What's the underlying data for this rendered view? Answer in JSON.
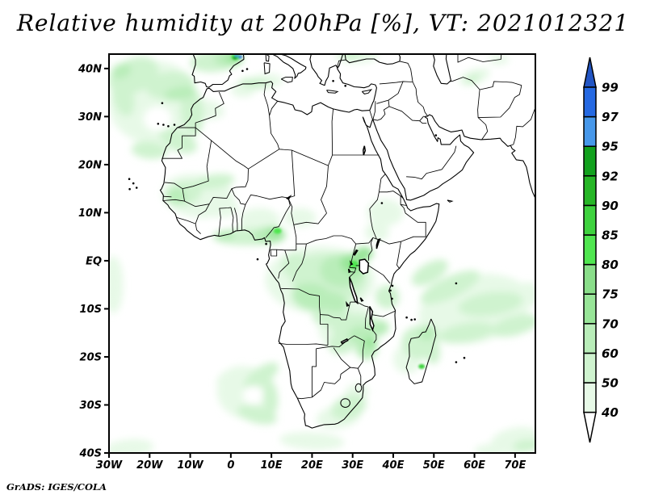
{
  "title": "Relative humidity at 200hPa [%], VT: 2021012321",
  "credit": "GrADS: IGES/COLA",
  "chart_data": {
    "type": "heatmap",
    "projection": "lat-lon map, Africa / Atlantic / Indian Ocean sector",
    "title": "Relative humidity at 200hPa [%], VT: 2021012321",
    "variable": "Relative humidity",
    "pressure_level": "200hPa",
    "units": "%",
    "valid_time": "2021012321",
    "lon_range": [
      -30,
      75
    ],
    "lat_range": [
      -40,
      43
    ],
    "grid": false,
    "legend_position": "right colorbar",
    "x_ticks": [
      {
        "lon": -30,
        "label": "30W"
      },
      {
        "lon": -20,
        "label": "20W"
      },
      {
        "lon": -10,
        "label": "10W"
      },
      {
        "lon": 0,
        "label": "0"
      },
      {
        "lon": 10,
        "label": "10E"
      },
      {
        "lon": 20,
        "label": "20E"
      },
      {
        "lon": 30,
        "label": "30E"
      },
      {
        "lon": 40,
        "label": "40E"
      },
      {
        "lon": 50,
        "label": "50E"
      },
      {
        "lon": 60,
        "label": "60E"
      },
      {
        "lon": 70,
        "label": "70E"
      }
    ],
    "y_ticks": [
      {
        "lat": 40,
        "label": "40N"
      },
      {
        "lat": 30,
        "label": "30N"
      },
      {
        "lat": 20,
        "label": "20N"
      },
      {
        "lat": 10,
        "label": "10N"
      },
      {
        "lat": 0,
        "label": "EQ"
      },
      {
        "lat": -10,
        "label": "10S"
      },
      {
        "lat": -20,
        "label": "20S"
      },
      {
        "lat": -30,
        "label": "30S"
      },
      {
        "lat": -40,
        "label": "40S"
      }
    ],
    "colorbar": {
      "levels": [
        40,
        50,
        60,
        70,
        75,
        80,
        85,
        90,
        92,
        95,
        97,
        99
      ],
      "segment_colors": [
        "#e7f9e7",
        "#cff3cf",
        "#b9edb9",
        "#98e598",
        "#8ade8a",
        "#50e650",
        "#3ed23e",
        "#26b626",
        "#12a11d",
        "#4798ea",
        "#2569e2"
      ],
      "under_color": "#ffffff",
      "over_color": "#2255c4"
    },
    "palette": {
      "40": "#e7f9e7",
      "50": "#cff3cf",
      "60": "#b9edb9",
      "70": "#98e598",
      "75": "#8ade8a",
      "80": "#50e650",
      "85": "#3ed23e",
      "90": "#26b626",
      "92": "#12a11d",
      "95": "#4798ea",
      "97": "#2569e2",
      "99": "#2255c4",
      "W": "#ffffff"
    },
    "shading": [
      [
        -19,
        33,
        11,
        8.5,
        -15,
        "40"
      ],
      [
        -26.5,
        34,
        2.5,
        4,
        -15,
        "50"
      ],
      [
        -24,
        38.5,
        6.5,
        3.5,
        -25,
        "50"
      ],
      [
        -15,
        36.5,
        6,
        2.8,
        -8,
        "50"
      ],
      [
        -9.5,
        31,
        2.8,
        5,
        -5,
        "50"
      ],
      [
        -13,
        25,
        5,
        2.2,
        25,
        "50"
      ],
      [
        -20,
        23,
        4.5,
        1.8,
        5,
        "50"
      ],
      [
        -18,
        29.5,
        3.5,
        2.6,
        0,
        "W"
      ],
      [
        -12.5,
        34.8,
        4,
        1.4,
        -10,
        "60"
      ],
      [
        -27,
        39.5,
        2.5,
        1.5,
        -20,
        "60"
      ],
      [
        -4,
        41.5,
        6,
        2.2,
        -5,
        "50"
      ],
      [
        -0.5,
        42,
        3.5,
        1.6,
        0,
        "60"
      ],
      [
        0.8,
        42.2,
        2,
        1.1,
        0,
        "70"
      ],
      [
        1.2,
        42.4,
        1.1,
        0.6,
        0,
        "80"
      ],
      [
        1,
        42.2,
        0.6,
        0.35,
        0,
        "92"
      ],
      [
        2.3,
        42.4,
        0.5,
        0.3,
        -20,
        "97"
      ],
      [
        1.4,
        42.7,
        0.45,
        0.25,
        -20,
        "95"
      ],
      [
        6,
        36.9,
        4,
        1.1,
        5,
        "50"
      ],
      [
        9,
        37.5,
        4,
        1.4,
        0,
        "40"
      ],
      [
        -6,
        31.5,
        4.5,
        2,
        10,
        "40"
      ],
      [
        3,
        35.5,
        3,
        1.5,
        0,
        "40"
      ],
      [
        31,
        42.7,
        5.5,
        1.6,
        0,
        "40"
      ],
      [
        29.5,
        42.9,
        2.5,
        1,
        0,
        "50"
      ],
      [
        60,
        38.3,
        4,
        1.5,
        -20,
        "40"
      ],
      [
        59.5,
        37.8,
        2,
        0.8,
        -25,
        "50"
      ],
      [
        66,
        41.8,
        2.5,
        1,
        0,
        "40"
      ],
      [
        -8,
        13.5,
        9,
        4.5,
        8,
        "40"
      ],
      [
        -11.5,
        14,
        4.5,
        2.5,
        -15,
        "50"
      ],
      [
        -13.5,
        13.5,
        2.5,
        1.6,
        0,
        "60"
      ],
      [
        -4,
        16.5,
        5,
        1.5,
        -8,
        "50"
      ],
      [
        -2,
        11,
        4,
        2,
        0,
        "40"
      ],
      [
        4,
        5,
        8.5,
        1.8,
        0,
        "50"
      ],
      [
        9.5,
        5.3,
        4,
        1.8,
        0,
        "60"
      ],
      [
        11,
        5.8,
        2.2,
        1.2,
        10,
        "70"
      ],
      [
        11.5,
        6.2,
        1,
        0.6,
        0,
        "80"
      ],
      [
        -1.5,
        5.2,
        2.5,
        1,
        0,
        "60"
      ],
      [
        7,
        8.5,
        5,
        2.5,
        0,
        "40"
      ],
      [
        17,
        9,
        4,
        2,
        0,
        "40"
      ],
      [
        22,
        -4,
        13.5,
        7,
        0,
        "40"
      ],
      [
        24,
        -3.5,
        9.5,
        5,
        5,
        "50"
      ],
      [
        27.5,
        -2,
        5.5,
        3.5,
        0,
        "60"
      ],
      [
        20,
        -7.5,
        5,
        2.8,
        10,
        "60"
      ],
      [
        30,
        -0.5,
        3,
        2,
        0,
        "70"
      ],
      [
        32.8,
        1.5,
        2.2,
        1.4,
        0,
        "70"
      ],
      [
        30.3,
        -0.8,
        1.1,
        0.8,
        0,
        "80"
      ],
      [
        16,
        -1,
        3.5,
        2.5,
        0,
        "50"
      ],
      [
        25,
        -8.5,
        4,
        2,
        15,
        "60"
      ],
      [
        38,
        10,
        4.5,
        2.8,
        0,
        "40"
      ],
      [
        36,
        6,
        3,
        2,
        0,
        "40"
      ],
      [
        60,
        -10,
        14,
        7,
        -12,
        "40"
      ],
      [
        54,
        -5.5,
        8,
        2.2,
        -25,
        "50"
      ],
      [
        64,
        -9,
        8,
        2.4,
        -8,
        "50"
      ],
      [
        70,
        -13.5,
        6,
        2,
        -15,
        "50"
      ],
      [
        49,
        -2.5,
        5,
        2,
        -30,
        "50"
      ],
      [
        73,
        -7,
        4,
        2.5,
        0,
        "40"
      ],
      [
        58,
        -15,
        7,
        2,
        -10,
        "50"
      ],
      [
        46.5,
        -17,
        4.5,
        3.5,
        0,
        "50"
      ],
      [
        48.5,
        -15,
        2.2,
        1.5,
        -20,
        "60"
      ],
      [
        43.5,
        -20.5,
        3.5,
        3,
        0,
        "40"
      ],
      [
        47,
        -22,
        0.8,
        0.5,
        0,
        "85"
      ],
      [
        49.5,
        -18.5,
        2,
        3,
        -10,
        "50"
      ],
      [
        29.5,
        -14,
        8,
        5,
        0,
        "40"
      ],
      [
        30.5,
        -14.5,
        5.5,
        3.5,
        0,
        "50"
      ],
      [
        32,
        -15.5,
        3,
        2,
        0,
        "60"
      ],
      [
        33.5,
        -18.5,
        2.6,
        2,
        -10,
        "60"
      ],
      [
        34.5,
        -17,
        1.6,
        1,
        0,
        "70"
      ],
      [
        36.5,
        -14,
        2.5,
        1.6,
        -10,
        "60"
      ],
      [
        24.5,
        -11.5,
        4.5,
        2.2,
        0,
        "50"
      ],
      [
        27,
        -17.5,
        3,
        2,
        0,
        "50"
      ],
      [
        38.5,
        -7.5,
        3,
        2.5,
        0,
        "50"
      ],
      [
        29,
        -30.5,
        4.5,
        2.4,
        -20,
        "50"
      ],
      [
        26.5,
        -32.5,
        5.5,
        2.4,
        -10,
        "40"
      ],
      [
        31,
        -27.5,
        3,
        2,
        -20,
        "40"
      ],
      [
        4,
        -27.5,
        7.5,
        5.5,
        15,
        "40"
      ],
      [
        7.5,
        -24,
        5,
        1.8,
        -35,
        "50"
      ],
      [
        9.8,
        -28.5,
        1.8,
        3.5,
        -5,
        "50"
      ],
      [
        6.5,
        -32,
        5,
        1.8,
        15,
        "50"
      ],
      [
        0,
        -24,
        4,
        1.5,
        -30,
        "40"
      ],
      [
        5.5,
        -28,
        2.5,
        2,
        0,
        "W"
      ],
      [
        20,
        -37.5,
        8,
        1.8,
        3,
        "40"
      ],
      [
        -25,
        -39,
        6,
        1.8,
        -5,
        "40"
      ],
      [
        -29,
        -5,
        2.5,
        6,
        0,
        "40"
      ],
      [
        70.5,
        -37.5,
        6.5,
        2.8,
        -8,
        "40"
      ],
      [
        73,
        -38.5,
        3.5,
        1.3,
        -5,
        "50"
      ],
      [
        64,
        -39.5,
        4,
        1.3,
        0,
        "40"
      ]
    ],
    "features": [
      "Cyclonic swirl of 50-70% RH over the NE Atlantic west of Morocco and the Canary Islands",
      "Maximum 90-99% RH in small spots over NE Spain / Pyrenees (blue shades)",
      "40-80% band along the Gulf of Guinea coast from Ghana to Cameroon",
      "Broad 40-70% region over the Congo Basin and East African lakes",
      "40-60% streaks across the western Indian Ocean between 0S and 20S",
      "40-75% over Zambia, Zimbabwe, Mozambique and Madagascar",
      "Comma-shaped 40-60% swirl off the Namibian coast (South Atlantic)",
      "40-60% patch over eastern South Africa",
      "40-50% over Turkey and Central Asia",
      "Dry (<40%, white) over the Sahara, Arabia and the Horn of Africa"
    ]
  }
}
